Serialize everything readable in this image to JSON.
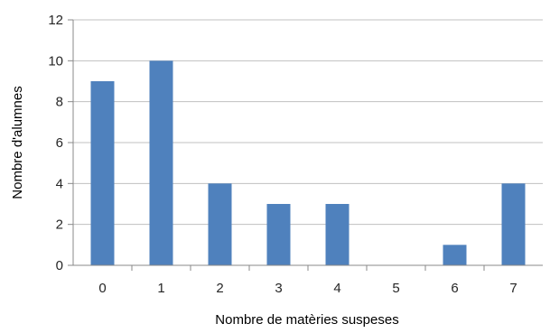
{
  "chart_data": {
    "type": "bar",
    "categories": [
      "0",
      "1",
      "2",
      "3",
      "4",
      "5",
      "6",
      "7"
    ],
    "values": [
      9,
      10,
      4,
      3,
      3,
      0,
      1,
      4
    ],
    "xlabel": "Nombre de matèries suspeses",
    "ylabel": "Nombre d'alumnes",
    "ylim": [
      0,
      12
    ],
    "yticks": [
      "0",
      "2",
      "4",
      "6",
      "8",
      "10",
      "12"
    ],
    "grid": true,
    "legend": "none",
    "colors": {
      "bar": "#4F81BD",
      "grid": "#C0C0C0",
      "axis": "#888888"
    }
  }
}
